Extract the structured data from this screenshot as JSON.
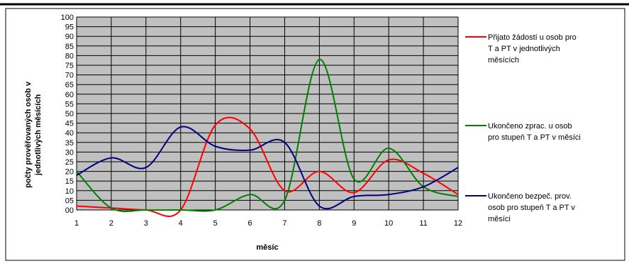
{
  "chart_data": {
    "type": "line",
    "xlabel": "měsíc",
    "ylabel": "počty prověřovaných osob v jednotlivých měsících",
    "ylabel_lines": [
      "počty prověřovaných osob v",
      "jednotlivých měsících"
    ],
    "x": [
      1,
      2,
      3,
      4,
      5,
      6,
      7,
      8,
      9,
      10,
      11,
      12
    ],
    "x_tick_labels": [
      "1",
      "2",
      "3",
      "4",
      "5",
      "6",
      "7",
      "8",
      "9",
      "10",
      "11",
      "12"
    ],
    "y_tick_labels": [
      "00",
      "05",
      "10",
      "15",
      "20",
      "25",
      "30",
      "35",
      "40",
      "45",
      "50",
      "55",
      "60",
      "65",
      "70",
      "75",
      "80",
      "85",
      "90",
      "95",
      "100"
    ],
    "ylim": [
      0,
      100
    ],
    "xlim": [
      1,
      12
    ],
    "grid": true,
    "legend_position": "right",
    "plot_background": "#c0c0c0",
    "series": [
      {
        "name": "Přijato žádostí u osob pro T a PT v jednotlivých měsících",
        "legend_lines": [
          "Přijato žádostí u osob pro",
          "T a PT v jednotlivých",
          "měsících"
        ],
        "color": "#ff0000",
        "values": [
          2,
          1,
          0,
          0,
          44,
          42,
          10,
          20,
          9,
          26,
          19,
          8
        ]
      },
      {
        "name": "Ukončeno zprac. u osob pro stupeň T a PT v měsíci",
        "legend_lines": [
          "Ukončeno zprac. u osob",
          "pro stupeň T a PT v měsíci"
        ],
        "color": "#008000",
        "values": [
          20,
          1,
          0,
          0,
          0,
          8,
          5,
          78,
          16,
          32,
          12,
          7
        ]
      },
      {
        "name": "Ukončeno bezpeč. prov. osob pro stupeň T a PT v měsíci",
        "legend_lines": [
          "Ukončeno bezpeč. prov.",
          "osob pro stupeň T a PT v",
          "měsíci"
        ],
        "color": "#000080",
        "values": [
          18,
          27,
          22,
          43,
          33,
          31,
          35,
          2,
          7,
          8,
          12,
          22
        ]
      }
    ]
  }
}
